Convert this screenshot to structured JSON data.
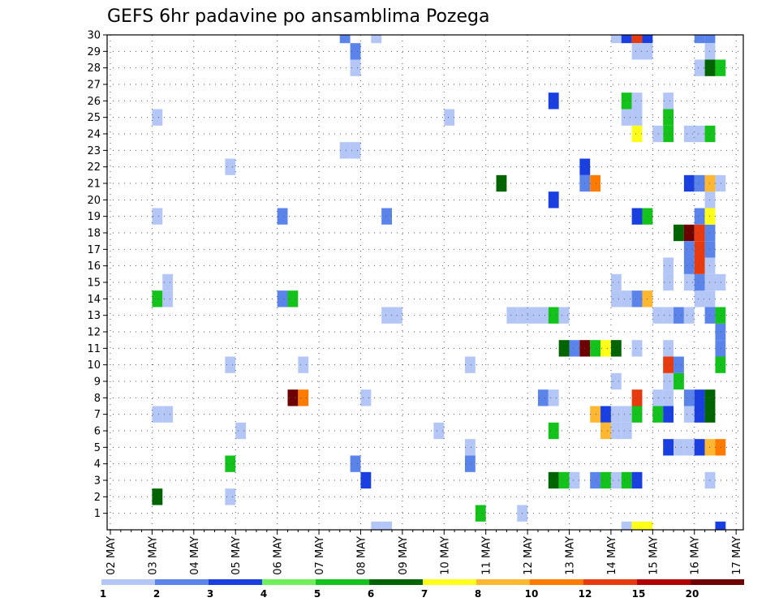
{
  "chart_data": {
    "type": "heatmap",
    "title": "GEFS 6hr padavine po ansamblima Pozega",
    "xlabel": "",
    "ylabel": "",
    "x_start_label": "02 MAY",
    "x_tick_labels": [
      "02 MAY",
      "03 MAY",
      "04 MAY",
      "05 MAY",
      "06 MAY",
      "07 MAY",
      "08 MAY",
      "09 MAY",
      "10 MAY",
      "11 MAY",
      "12 MAY",
      "13 MAY",
      "14 MAY",
      "15 MAY",
      "16 MAY",
      "17 MAY"
    ],
    "x_steps_per_day": 4,
    "xlim_steps": [
      0,
      61
    ],
    "y_ticks": [
      1,
      2,
      3,
      4,
      5,
      6,
      7,
      8,
      9,
      10,
      11,
      12,
      13,
      14,
      15,
      16,
      17,
      18,
      19,
      20,
      21,
      22,
      23,
      24,
      25,
      26,
      27,
      28,
      29,
      30
    ],
    "ylim": [
      0,
      30
    ],
    "grid": "dotted",
    "colorbar": {
      "levels": [
        "1",
        "2",
        "3",
        "4",
        "5",
        "6",
        "7",
        "8",
        "10",
        "12",
        "15",
        "20"
      ],
      "colors": [
        "#b3c6f5",
        "#5b84eb",
        "#1a3fe0",
        "#6ff05a",
        "#14c21c",
        "#006400",
        "#ffff1a",
        "#ffb732",
        "#ff7b00",
        "#e83a0f",
        "#b30000",
        "#6e0000"
      ]
    },
    "cells": [
      {
        "step": 4,
        "member": 2,
        "value": 6
      },
      {
        "step": 4,
        "member": 7,
        "value": 1
      },
      {
        "step": 5,
        "member": 7,
        "value": 1
      },
      {
        "step": 4,
        "member": 14,
        "value": 5
      },
      {
        "step": 5,
        "member": 14,
        "value": 1
      },
      {
        "step": 5,
        "member": 15,
        "value": 1
      },
      {
        "step": 4,
        "member": 19,
        "value": 1
      },
      {
        "step": 4,
        "member": 25,
        "value": 1
      },
      {
        "step": 11,
        "member": 2,
        "value": 1
      },
      {
        "step": 11,
        "member": 4,
        "value": 5
      },
      {
        "step": 11,
        "member": 10,
        "value": 1
      },
      {
        "step": 11,
        "member": 22,
        "value": 1
      },
      {
        "step": 12,
        "member": 6,
        "value": 1
      },
      {
        "step": 16,
        "member": 14,
        "value": 2
      },
      {
        "step": 16,
        "member": 19,
        "value": 2
      },
      {
        "step": 17,
        "member": 8,
        "value": 20
      },
      {
        "step": 17,
        "member": 14,
        "value": 5
      },
      {
        "step": 18,
        "member": 8,
        "value": 10
      },
      {
        "step": 18,
        "member": 10,
        "value": 1
      },
      {
        "step": 22,
        "member": 23,
        "value": 1
      },
      {
        "step": 23,
        "member": 23,
        "value": 1
      },
      {
        "step": 22,
        "member": 30,
        "value": 2
      },
      {
        "step": 23,
        "member": 4,
        "value": 2
      },
      {
        "step": 23,
        "member": 28,
        "value": 1
      },
      {
        "step": 23,
        "member": 29,
        "value": 2
      },
      {
        "step": 24,
        "member": 3,
        "value": 3
      },
      {
        "step": 24,
        "member": 8,
        "value": 1
      },
      {
        "step": 25,
        "member": 0,
        "value": 1
      },
      {
        "step": 25,
        "member": 30,
        "value": 1
      },
      {
        "step": 26,
        "member": 0,
        "value": 1
      },
      {
        "step": 26,
        "member": 13,
        "value": 1
      },
      {
        "step": 27,
        "member": 13,
        "value": 1
      },
      {
        "step": 26,
        "member": 19,
        "value": 2
      },
      {
        "step": 31,
        "member": 6,
        "value": 1
      },
      {
        "step": 32,
        "member": 25,
        "value": 1
      },
      {
        "step": 34,
        "member": 4,
        "value": 2
      },
      {
        "step": 34,
        "member": 5,
        "value": 1
      },
      {
        "step": 34,
        "member": 10,
        "value": 1
      },
      {
        "step": 35,
        "member": 1,
        "value": 5
      },
      {
        "step": 37,
        "member": 21,
        "value": 6
      },
      {
        "step": 39,
        "member": 1,
        "value": 1
      },
      {
        "step": 38,
        "member": 13,
        "value": 1
      },
      {
        "step": 39,
        "member": 13,
        "value": 1
      },
      {
        "step": 40,
        "member": 13,
        "value": 1
      },
      {
        "step": 41,
        "member": 13,
        "value": 1
      },
      {
        "step": 42,
        "member": 13,
        "value": 5
      },
      {
        "step": 43,
        "member": 13,
        "value": 1
      },
      {
        "step": 41,
        "member": 8,
        "value": 2
      },
      {
        "step": 42,
        "member": 8,
        "value": 1
      },
      {
        "step": 42,
        "member": 3,
        "value": 6
      },
      {
        "step": 43,
        "member": 3,
        "value": 5
      },
      {
        "step": 44,
        "member": 3,
        "value": 1
      },
      {
        "step": 42,
        "member": 6,
        "value": 5
      },
      {
        "step": 42,
        "member": 20,
        "value": 3
      },
      {
        "step": 42,
        "member": 26,
        "value": 3
      },
      {
        "step": 43,
        "member": 11,
        "value": 6
      },
      {
        "step": 44,
        "member": 11,
        "value": 2
      },
      {
        "step": 45,
        "member": 11,
        "value": 20
      },
      {
        "step": 46,
        "member": 11,
        "value": 5
      },
      {
        "step": 47,
        "member": 11,
        "value": 7
      },
      {
        "step": 48,
        "member": 11,
        "value": 6
      },
      {
        "step": 45,
        "member": 21,
        "value": 2
      },
      {
        "step": 46,
        "member": 21,
        "value": 10
      },
      {
        "step": 45,
        "member": 22,
        "value": 3
      },
      {
        "step": 46,
        "member": 3,
        "value": 2
      },
      {
        "step": 47,
        "member": 3,
        "value": 5
      },
      {
        "step": 48,
        "member": 3,
        "value": 1
      },
      {
        "step": 49,
        "member": 3,
        "value": 5
      },
      {
        "step": 50,
        "member": 3,
        "value": 3
      },
      {
        "step": 46,
        "member": 7,
        "value": 8
      },
      {
        "step": 47,
        "member": 7,
        "value": 3
      },
      {
        "step": 48,
        "member": 7,
        "value": 1
      },
      {
        "step": 49,
        "member": 7,
        "value": 1
      },
      {
        "step": 50,
        "member": 7,
        "value": 5
      },
      {
        "step": 47,
        "member": 6,
        "value": 8
      },
      {
        "step": 48,
        "member": 6,
        "value": 1
      },
      {
        "step": 49,
        "member": 6,
        "value": 1
      },
      {
        "step": 48,
        "member": 9,
        "value": 1
      },
      {
        "step": 48,
        "member": 14,
        "value": 1
      },
      {
        "step": 49,
        "member": 14,
        "value": 1
      },
      {
        "step": 48,
        "member": 15,
        "value": 1
      },
      {
        "step": 49,
        "member": 26,
        "value": 5
      },
      {
        "step": 50,
        "member": 26,
        "value": 1
      },
      {
        "step": 49,
        "member": 25,
        "value": 1
      },
      {
        "step": 50,
        "member": 25,
        "value": 1
      },
      {
        "step": 48,
        "member": 30,
        "value": 1
      },
      {
        "step": 49,
        "member": 30,
        "value": 3
      },
      {
        "step": 50,
        "member": 30,
        "value": 12
      },
      {
        "step": 51,
        "member": 30,
        "value": 3
      },
      {
        "step": 50,
        "member": 29,
        "value": 1
      },
      {
        "step": 51,
        "member": 29,
        "value": 1
      },
      {
        "step": 49,
        "member": 0,
        "value": 1
      },
      {
        "step": 50,
        "member": 0,
        "value": 7
      },
      {
        "step": 51,
        "member": 0,
        "value": 7
      },
      {
        "step": 50,
        "member": 8,
        "value": 12
      },
      {
        "step": 50,
        "member": 11,
        "value": 1
      },
      {
        "step": 50,
        "member": 14,
        "value": 2
      },
      {
        "step": 51,
        "member": 14,
        "value": 8
      },
      {
        "step": 50,
        "member": 19,
        "value": 3
      },
      {
        "step": 51,
        "member": 19,
        "value": 5
      },
      {
        "step": 50,
        "member": 24,
        "value": 7
      },
      {
        "step": 52,
        "member": 7,
        "value": 5
      },
      {
        "step": 53,
        "member": 7,
        "value": 3
      },
      {
        "step": 53,
        "member": 8,
        "value": 1
      },
      {
        "step": 52,
        "member": 8,
        "value": 1
      },
      {
        "step": 53,
        "member": 5,
        "value": 3
      },
      {
        "step": 53,
        "member": 9,
        "value": 1
      },
      {
        "step": 52,
        "member": 13,
        "value": 1
      },
      {
        "step": 53,
        "member": 13,
        "value": 1
      },
      {
        "step": 53,
        "member": 10,
        "value": 12
      },
      {
        "step": 53,
        "member": 11,
        "value": 1
      },
      {
        "step": 53,
        "member": 15,
        "value": 1
      },
      {
        "step": 53,
        "member": 16,
        "value": 1
      },
      {
        "step": 53,
        "member": 24,
        "value": 5
      },
      {
        "step": 53,
        "member": 25,
        "value": 5
      },
      {
        "step": 53,
        "member": 26,
        "value": 1
      },
      {
        "step": 52,
        "member": 24,
        "value": 1
      },
      {
        "step": 54,
        "member": 9,
        "value": 5
      },
      {
        "step": 54,
        "member": 10,
        "value": 2
      },
      {
        "step": 54,
        "member": 13,
        "value": 2
      },
      {
        "step": 54,
        "member": 18,
        "value": 6
      },
      {
        "step": 54,
        "member": 5,
        "value": 1
      },
      {
        "step": 55,
        "member": 5,
        "value": 1
      },
      {
        "step": 55,
        "member": 8,
        "value": 2
      },
      {
        "step": 55,
        "member": 7,
        "value": 1
      },
      {
        "step": 55,
        "member": 13,
        "value": 1
      },
      {
        "step": 55,
        "member": 15,
        "value": 1
      },
      {
        "step": 55,
        "member": 16,
        "value": 2
      },
      {
        "step": 55,
        "member": 18,
        "value": 20
      },
      {
        "step": 55,
        "member": 17,
        "value": 2
      },
      {
        "step": 55,
        "member": 21,
        "value": 3
      },
      {
        "step": 55,
        "member": 24,
        "value": 1
      },
      {
        "step": 56,
        "member": 24,
        "value": 1
      },
      {
        "step": 56,
        "member": 5,
        "value": 3
      },
      {
        "step": 56,
        "member": 7,
        "value": 3
      },
      {
        "step": 56,
        "member": 8,
        "value": 3
      },
      {
        "step": 56,
        "member": 14,
        "value": 1
      },
      {
        "step": 56,
        "member": 15,
        "value": 2
      },
      {
        "step": 56,
        "member": 16,
        "value": 12
      },
      {
        "step": 56,
        "member": 17,
        "value": 12
      },
      {
        "step": 56,
        "member": 18,
        "value": 12
      },
      {
        "step": 56,
        "member": 19,
        "value": 2
      },
      {
        "step": 56,
        "member": 21,
        "value": 2
      },
      {
        "step": 56,
        "member": 30,
        "value": 2
      },
      {
        "step": 57,
        "member": 30,
        "value": 2
      },
      {
        "step": 56,
        "member": 28,
        "value": 1
      },
      {
        "step": 57,
        "member": 5,
        "value": 8
      },
      {
        "step": 57,
        "member": 7,
        "value": 6
      },
      {
        "step": 57,
        "member": 8,
        "value": 6
      },
      {
        "step": 57,
        "member": 3,
        "value": 1
      },
      {
        "step": 57,
        "member": 13,
        "value": 2
      },
      {
        "step": 57,
        "member": 14,
        "value": 1
      },
      {
        "step": 57,
        "member": 15,
        "value": 1
      },
      {
        "step": 57,
        "member": 16,
        "value": 1
      },
      {
        "step": 57,
        "member": 17,
        "value": 2
      },
      {
        "step": 57,
        "member": 18,
        "value": 2
      },
      {
        "step": 57,
        "member": 19,
        "value": 7
      },
      {
        "step": 57,
        "member": 20,
        "value": 1
      },
      {
        "step": 57,
        "member": 21,
        "value": 8
      },
      {
        "step": 57,
        "member": 24,
        "value": 5
      },
      {
        "step": 57,
        "member": 28,
        "value": 6
      },
      {
        "step": 57,
        "member": 29,
        "value": 1
      },
      {
        "step": 58,
        "member": 0,
        "value": 3
      },
      {
        "step": 58,
        "member": 5,
        "value": 10
      },
      {
        "step": 58,
        "member": 10,
        "value": 5
      },
      {
        "step": 58,
        "member": 11,
        "value": 2
      },
      {
        "step": 58,
        "member": 12,
        "value": 2
      },
      {
        "step": 58,
        "member": 13,
        "value": 5
      },
      {
        "step": 58,
        "member": 15,
        "value": 1
      },
      {
        "step": 58,
        "member": 21,
        "value": 1
      },
      {
        "step": 58,
        "member": 28,
        "value": 5
      }
    ]
  }
}
